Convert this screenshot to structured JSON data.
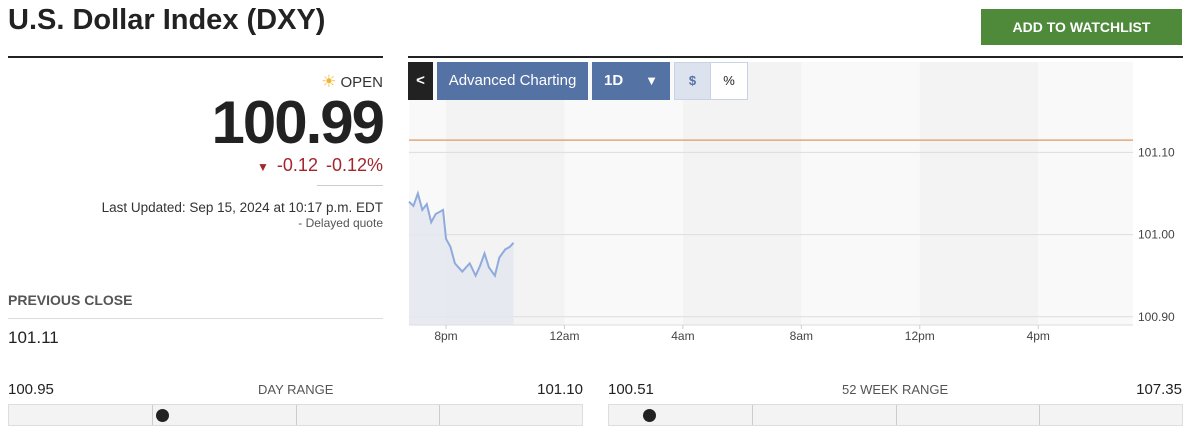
{
  "header": {
    "title": "U.S. Dollar Index (DXY)",
    "watchlist_button": "ADD TO WATCHLIST"
  },
  "quote": {
    "status_icon": "sun-icon",
    "status": "OPEN",
    "price": "100.99",
    "change_icon": "triangle-down-icon",
    "change": "-0.12",
    "change_pct": "-0.12%",
    "last_updated": "Last Updated: Sep 15, 2024 at 10:17 p.m. EDT",
    "delayed": "-  Delayed quote",
    "negative_color": "#a3262e"
  },
  "previous_close": {
    "label": "PREVIOUS CLOSE",
    "value": "101.11"
  },
  "day_range": {
    "label": "DAY RANGE",
    "low": "100.95",
    "high": "101.10",
    "current": 100.99
  },
  "week52_range": {
    "label": "52 WEEK RANGE",
    "low": "100.51",
    "high": "107.35",
    "current": 100.99
  },
  "toolbar": {
    "back": "<",
    "advanced": "Advanced Charting",
    "period": "1D",
    "period_icon": "caret-down-icon",
    "dollar": "$",
    "percent": "%",
    "active": "$"
  },
  "chart_data": {
    "type": "area",
    "x_labels": [
      "8pm",
      "12am",
      "4am",
      "8am",
      "12pm",
      "4pm"
    ],
    "x_label_hours": [
      20,
      24,
      28,
      32,
      36,
      40
    ],
    "xlim_hours": [
      18.75,
      43.2
    ],
    "ylim": [
      100.89,
      101.21
    ],
    "y_ticks": [
      "101.10",
      "101.00",
      "100.90"
    ],
    "y_tick_values": [
      101.1,
      101.0,
      100.9
    ],
    "reference_line": {
      "value": 101.115,
      "color": "#e0a77c"
    },
    "line_color": "#8faadc",
    "fill_color": "#e4e8f0",
    "grid": true,
    "points": [
      [
        18.75,
        101.04
      ],
      [
        18.9,
        101.035
      ],
      [
        19.05,
        101.05
      ],
      [
        19.2,
        101.03
      ],
      [
        19.35,
        101.037
      ],
      [
        19.5,
        101.015
      ],
      [
        19.65,
        101.025
      ],
      [
        19.9,
        101.03
      ],
      [
        20.0,
        100.995
      ],
      [
        20.15,
        100.985
      ],
      [
        20.3,
        100.965
      ],
      [
        20.55,
        100.955
      ],
      [
        20.8,
        100.965
      ],
      [
        21.0,
        100.95
      ],
      [
        21.15,
        100.962
      ],
      [
        21.3,
        100.977
      ],
      [
        21.45,
        100.96
      ],
      [
        21.65,
        100.95
      ],
      [
        21.8,
        100.972
      ],
      [
        22.0,
        100.982
      ],
      [
        22.15,
        100.985
      ],
      [
        22.28,
        100.99
      ]
    ]
  }
}
